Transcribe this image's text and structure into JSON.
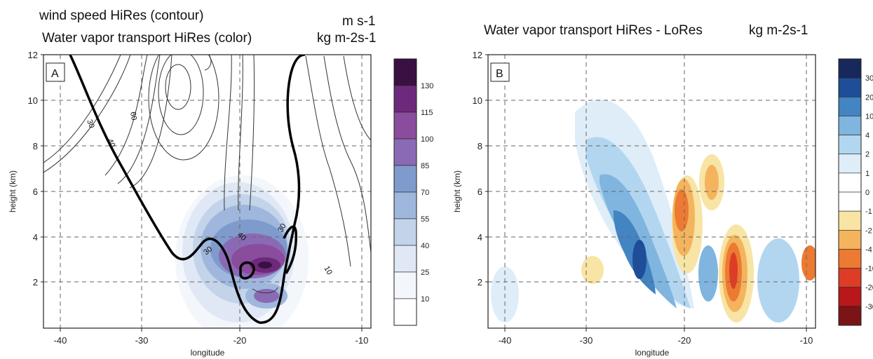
{
  "chart_data": [
    {
      "type": "heatmap",
      "panel_label": "A",
      "title_lines": [
        "wind speed HiRes (contour)",
        "Water vapor transport HiRes (color)"
      ],
      "units": [
        "m s-1",
        "kg m-2s-1"
      ],
      "xlabel": "longitude",
      "ylabel": "height (km)",
      "xlim": [
        -42,
        -9
      ],
      "ylim": [
        0,
        12
      ],
      "x_ticks": [
        -40,
        -30,
        -20,
        -10
      ],
      "y_ticks": [
        2,
        4,
        6,
        8,
        10,
        12
      ],
      "grid": true,
      "colorbar_levels": [
        10,
        25,
        40,
        55,
        70,
        85,
        100,
        115,
        130
      ],
      "colorbar_colors": [
        "#ffffff",
        "#f3f6fb",
        "#dfe8f4",
        "#c2d3ea",
        "#9fb7dc",
        "#7f9bcd",
        "#8a6ab4",
        "#8a4c9c",
        "#6d2a7c",
        "#3a0f42"
      ],
      "contour_labels": [
        "30",
        "40",
        "60",
        "40",
        "30",
        "30",
        "10"
      ]
    },
    {
      "type": "heatmap",
      "panel_label": "B",
      "title_lines": [
        "Water vapor transport HiRes - LoRes"
      ],
      "units": [
        "kg m-2s-1"
      ],
      "xlabel": "longitude",
      "ylabel": "height (km)",
      "xlim": [
        -42,
        -9
      ],
      "ylim": [
        0,
        12
      ],
      "x_ticks": [
        -40,
        -30,
        -20,
        -10
      ],
      "y_ticks": [
        2,
        4,
        6,
        8,
        10,
        12
      ],
      "grid": true,
      "colorbar_levels": [
        30,
        20,
        10,
        4,
        2,
        1,
        0,
        -1,
        -2,
        -4,
        -10,
        -20,
        -30
      ],
      "colorbar_colors": [
        "#7b1416",
        "#b8181c",
        "#dd3d27",
        "#ec7a32",
        "#f4b45e",
        "#f8e4a4",
        "#ffffff",
        "#ffffff",
        "#deedf7",
        "#b2d6ef",
        "#7fb5df",
        "#4384c3",
        "#1f4d98",
        "#17285c"
      ]
    }
  ]
}
